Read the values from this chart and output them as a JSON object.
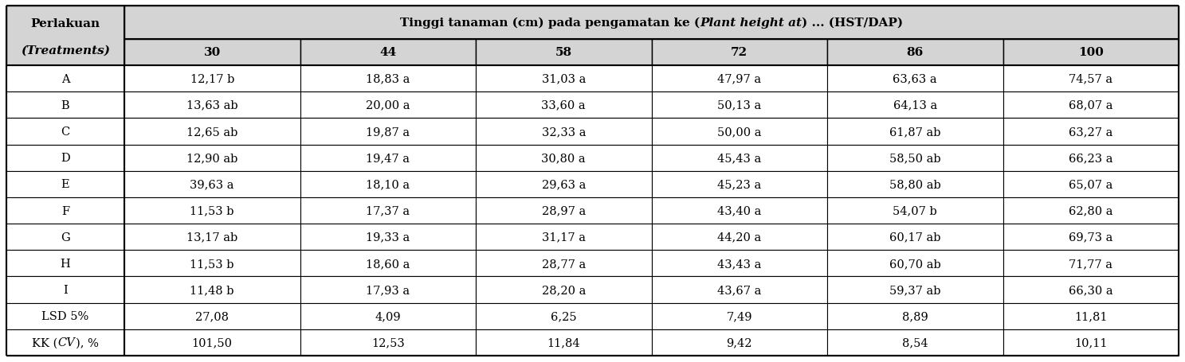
{
  "col0_header": [
    "Perlakuan",
    "(Treatments)"
  ],
  "span_header_seg1": "Tinggi tanaman (cm) pada pengamatan ke (",
  "span_header_seg2": "Plant height at",
  "span_header_seg3": ") ... (HST/DAP)",
  "sub_headers": [
    "30",
    "44",
    "58",
    "72",
    "86",
    "100"
  ],
  "rows": [
    {
      "label": "A",
      "values": [
        "12,17 b",
        "18,83 a",
        "31,03 a",
        "47,97 a",
        "63,63 a",
        "74,57 a"
      ]
    },
    {
      "label": "B",
      "values": [
        "13,63 ab",
        "20,00 a",
        "33,60 a",
        "50,13 a",
        "64,13 a",
        "68,07 a"
      ]
    },
    {
      "label": "C",
      "values": [
        "12,65 ab",
        "19,87 a",
        "32,33 a",
        "50,00 a",
        "61,87 ab",
        "63,27 a"
      ]
    },
    {
      "label": "D",
      "values": [
        "12,90 ab",
        "19,47 a",
        "30,80 a",
        "45,43 a",
        "58,50 ab",
        "66,23 a"
      ]
    },
    {
      "label": "E",
      "values": [
        "39,63 a",
        "18,10 a",
        "29,63 a",
        "45,23 a",
        "58,80 ab",
        "65,07 a"
      ]
    },
    {
      "label": "F",
      "values": [
        "11,53 b",
        "17,37 a",
        "28,97 a",
        "43,40 a",
        "54,07 b",
        "62,80 a"
      ]
    },
    {
      "label": "G",
      "values": [
        "13,17 ab",
        "19,33 a",
        "31,17 a",
        "44,20 a",
        "60,17 ab",
        "69,73 a"
      ]
    },
    {
      "label": "H",
      "values": [
        "11,53 b",
        "18,60 a",
        "28,77 a",
        "43,43 a",
        "60,70 ab",
        "71,77 a"
      ]
    },
    {
      "label": "I",
      "values": [
        "11,48 b",
        "17,93 a",
        "28,20 a",
        "43,67 a",
        "59,37 ab",
        "66,30 a"
      ]
    },
    {
      "label": "LSD 5%",
      "values": [
        "27,08",
        "4,09",
        "6,25",
        "7,49",
        "8,89",
        "11,81"
      ]
    },
    {
      "label": "KK (CV), %",
      "values": [
        "101,50",
        "12,53",
        "11,84",
        "9,42",
        "8,54",
        "10,11"
      ]
    }
  ],
  "header_bg": "#d4d4d4",
  "cell_bg": "#ffffff",
  "fig_width": 14.87,
  "fig_height": 4.56,
  "dpi": 100,
  "fs": 10.5,
  "hfs": 11.0
}
